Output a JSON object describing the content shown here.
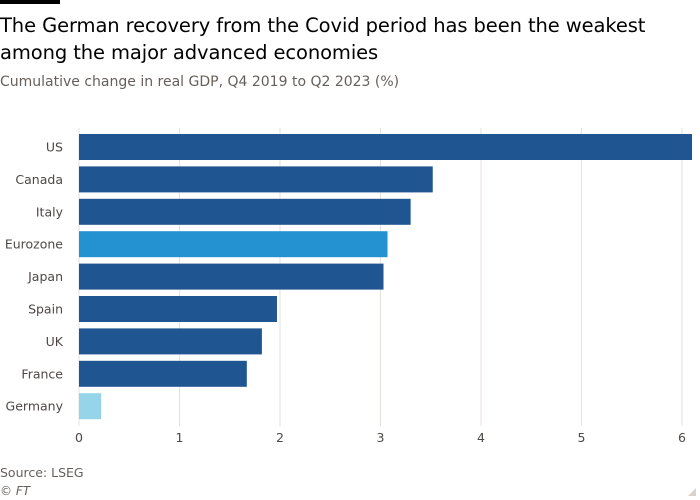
{
  "title": "The German recovery from the Covid period has been the weakest among the major advanced economies",
  "subtitle": "Cumulative change in real GDP, Q4 2019 to Q2 2023 (%)",
  "source": "Source: LSEG",
  "credit": "© FT",
  "colors": {
    "default_bar": "#1f5591",
    "eurozone_bar": "#2491d0",
    "germany_bar": "#96d4ea"
  },
  "chart_data": {
    "type": "bar",
    "orientation": "horizontal",
    "categories": [
      "US",
      "Canada",
      "Italy",
      "Eurozone",
      "Japan",
      "Spain",
      "UK",
      "France",
      "Germany"
    ],
    "values": [
      6.1,
      3.52,
      3.3,
      3.07,
      3.03,
      1.97,
      1.82,
      1.67,
      0.22
    ],
    "bar_colors": [
      "#1f5591",
      "#1f5591",
      "#1f5591",
      "#2491d0",
      "#1f5591",
      "#1f5591",
      "#1f5591",
      "#1f5591",
      "#96d4ea"
    ],
    "xlim": [
      0,
      6.1
    ],
    "xticks": [
      0,
      1,
      2,
      3,
      4,
      5,
      6
    ],
    "xlabel": "",
    "ylabel": "",
    "grid": "vertical"
  }
}
